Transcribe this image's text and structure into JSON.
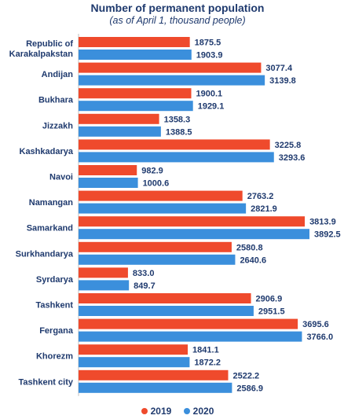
{
  "chart_data": {
    "type": "bar",
    "orientation": "horizontal",
    "title": "Number of permanent population",
    "subtitle": "(as of April 1, thousand people)",
    "categories": [
      "Republic of Karakalpakstan",
      "Andijan",
      "Bukhara",
      "Jizzakh",
      "Kashkadarya",
      "Navoi",
      "Namangan",
      "Samarkand",
      "Surkhandarya",
      "Syrdarya",
      "Tashkent",
      "Fergana",
      "Khorezm",
      "Tashkent city"
    ],
    "series": [
      {
        "name": "2019",
        "color": "#ef4a2c",
        "values": [
          1875.5,
          3077.4,
          1900.1,
          1358.3,
          3225.8,
          982.9,
          2763.2,
          3813.9,
          2580.8,
          833.0,
          2906.9,
          3695.6,
          1841.1,
          2522.2
        ],
        "labels": [
          "1875.5",
          "3077.4",
          "1900.1",
          "1358.3",
          "3225.8",
          "982.9",
          "2763.2",
          "3813.9",
          "2580.8",
          "833.0",
          "2906.9",
          "3695.6",
          "1841.1",
          "2522.2"
        ]
      },
      {
        "name": "2020",
        "color": "#3b8fdc",
        "values": [
          1903.9,
          3139.8,
          1929.1,
          1388.5,
          3293.6,
          1000.6,
          2821.9,
          3892.5,
          2640.6,
          849.7,
          2951.5,
          3766.0,
          1872.2,
          2586.9
        ],
        "labels": [
          "1903.9",
          "3139.8",
          "1929.1",
          "1388.5",
          "3293.6",
          "1000.6",
          "2821.9",
          "3892.5",
          "2640.6",
          "849.7",
          "2951.5",
          "3766.0",
          "1872.2",
          "2586.9"
        ]
      }
    ],
    "xlim": [
      0,
      3892.5
    ],
    "grid": false,
    "legend_position": "bottom"
  }
}
